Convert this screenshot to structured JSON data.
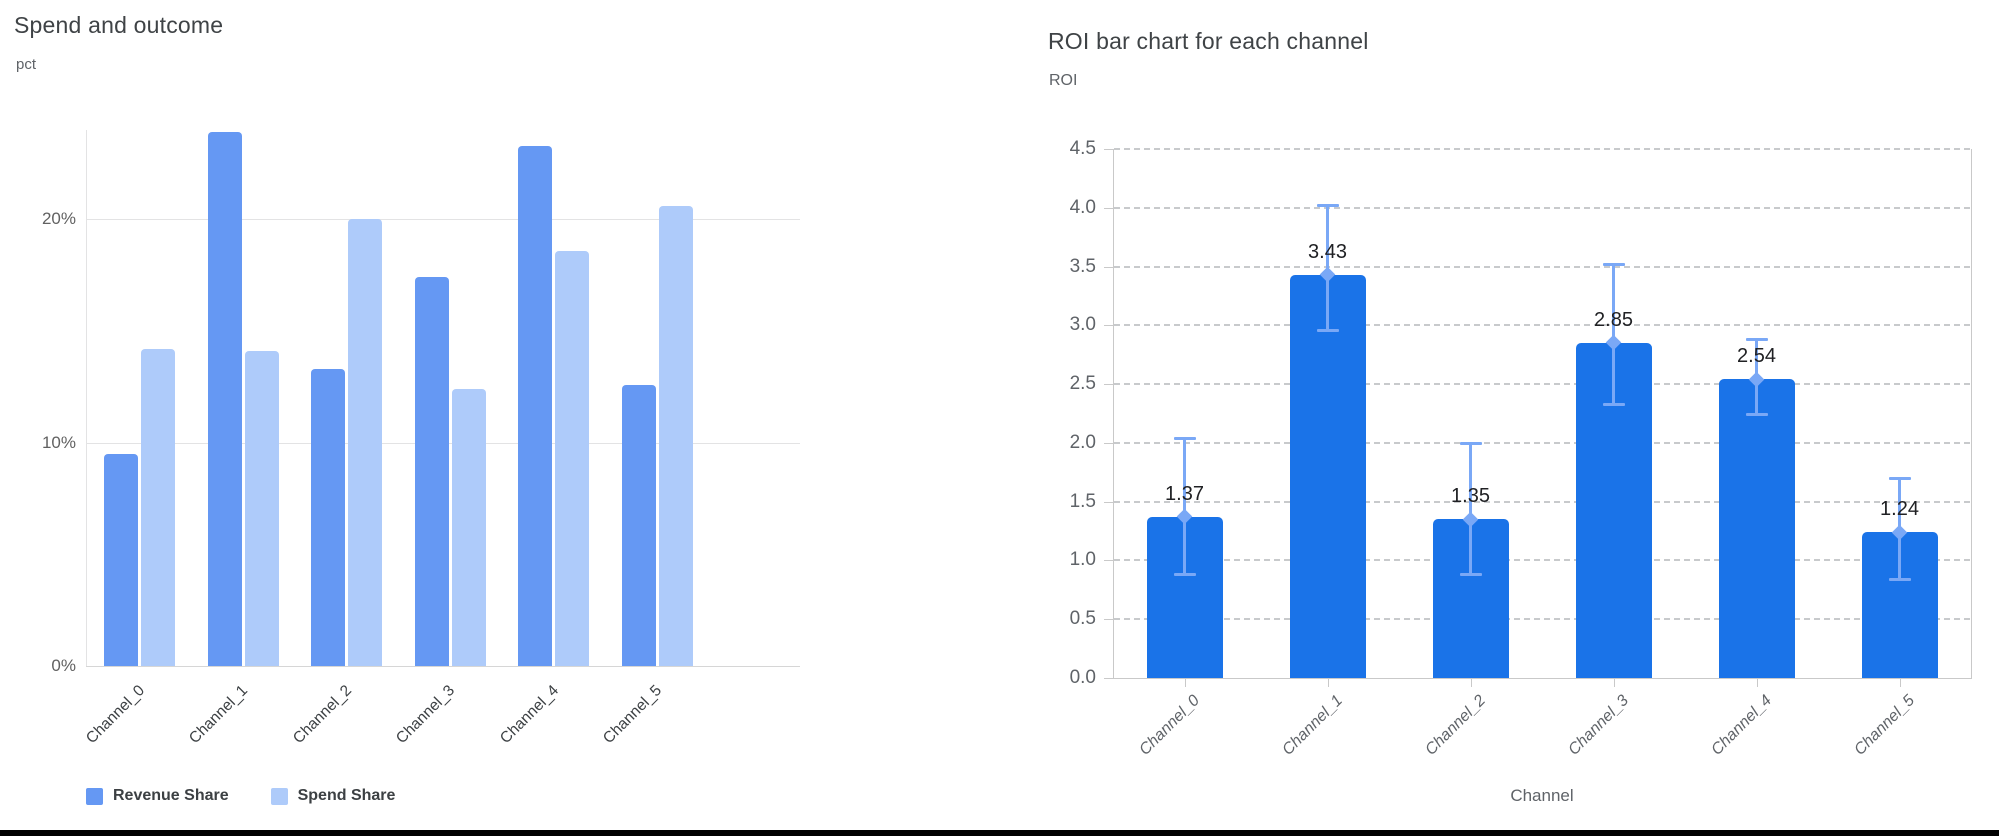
{
  "chart_data": [
    {
      "type": "bar",
      "variant": "grouped",
      "title": "Spend and outcome",
      "ylabel": "pct",
      "xlabel": "",
      "categories": [
        "Channel_0",
        "Channel_1",
        "Channel_2",
        "Channel_3",
        "Channel_4",
        "Channel_5"
      ],
      "series": [
        {
          "name": "Revenue Share",
          "color": "#6598f3",
          "values": [
            9.5,
            23.9,
            13.3,
            17.4,
            23.3,
            12.6
          ]
        },
        {
          "name": "Spend Share",
          "color": "#aecbfa",
          "values": [
            14.2,
            14.1,
            20.0,
            12.4,
            18.6,
            20.6
          ]
        }
      ],
      "y_ticks": [
        {
          "label": "0%",
          "value": 0
        },
        {
          "label": "10%",
          "value": 10
        },
        {
          "label": "20%",
          "value": 20
        }
      ],
      "ylim": [
        0,
        24
      ],
      "grid": "horizontal-solid",
      "legend_position": "bottom"
    },
    {
      "type": "bar",
      "variant": "single-series-with-error-bars",
      "title": "ROI bar chart for each channel",
      "ylabel": "ROI",
      "xlabel": "Channel",
      "categories": [
        "Channel_0",
        "Channel_1",
        "Channel_2",
        "Channel_3",
        "Channel_4",
        "Channel_5"
      ],
      "values": [
        1.37,
        3.43,
        1.35,
        2.85,
        2.54,
        1.24
      ],
      "value_labels": [
        "1.37",
        "3.43",
        "1.35",
        "2.85",
        "2.54",
        "1.24"
      ],
      "error_low": [
        0.88,
        2.95,
        0.88,
        2.32,
        2.24,
        0.83
      ],
      "error_high": [
        2.04,
        4.02,
        2.0,
        3.52,
        2.88,
        1.7
      ],
      "y_ticks": [
        {
          "label": "0.0",
          "value": 0.0
        },
        {
          "label": "0.5",
          "value": 0.5
        },
        {
          "label": "1.0",
          "value": 1.0
        },
        {
          "label": "1.5",
          "value": 1.5
        },
        {
          "label": "2.0",
          "value": 2.0
        },
        {
          "label": "2.5",
          "value": 2.5
        },
        {
          "label": "3.0",
          "value": 3.0
        },
        {
          "label": "3.5",
          "value": 3.5
        },
        {
          "label": "4.0",
          "value": 4.0
        },
        {
          "label": "4.5",
          "value": 4.5
        }
      ],
      "ylim": [
        0,
        4.5
      ],
      "bar_color": "#1a73e8",
      "error_color": "#7aa8f6",
      "grid": "horizontal-dashed",
      "legend_position": "none"
    }
  ],
  "colors": {
    "grid_solid": "#e3e3e4",
    "grid_dashed": "#c8cacc",
    "axis_line": "#c9c9c9",
    "tick_text": "#5f6368",
    "value_label_text": "#202124",
    "category_text_left": "#3c4043",
    "title_text": "#3f4346"
  }
}
